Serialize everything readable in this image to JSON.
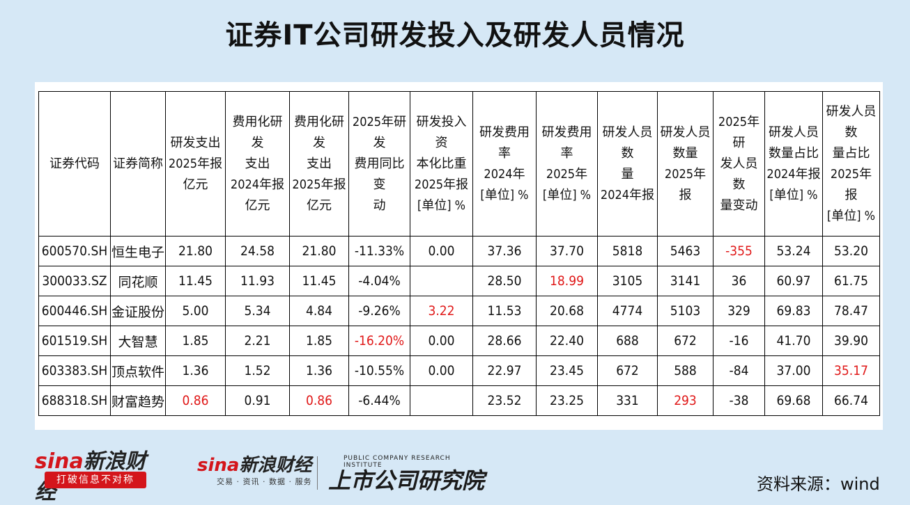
{
  "title": "证券IT公司研发投入及研发人员情况",
  "headers": [
    "证券代码",
    "证券简称",
    "研发支出\n2025年报\n亿元",
    "费用化研发\n支出\n2024年报\n亿元",
    "费用化研发\n支出\n2025年报\n亿元",
    "2025年研发\n费用同比变\n动",
    "研发投入资\n本化比重\n2025年报\n[单位] %",
    "研发费用率\n2024年\n[单位] %",
    "研发费用率\n2025年\n[单位] %",
    "研发人员数\n量\n2024年报",
    "研发人员\n数量\n2025年报",
    "2025年研\n发人员数\n量变动",
    "研发人员\n数量占比\n2024年报\n[单位] %",
    "研发人员数\n量占比\n2025年报\n[单位] %"
  ],
  "rows": [
    [
      "600570.SH",
      "恒生电子",
      "21.80",
      "24.58",
      "21.80",
      "-11.33%",
      "0.00",
      "37.36",
      "37.70",
      "5818",
      "5463",
      "-355",
      "53.24",
      "53.20"
    ],
    [
      "300033.SZ",
      "同花顺",
      "11.45",
      "11.93",
      "11.45",
      "-4.04%",
      "",
      "28.50",
      "18.99",
      "3105",
      "3141",
      "36",
      "60.97",
      "61.75"
    ],
    [
      "600446.SH",
      "金证股份",
      "5.00",
      "5.34",
      "4.84",
      "-9.26%",
      "3.22",
      "11.53",
      "20.68",
      "4774",
      "5103",
      "329",
      "69.83",
      "78.47"
    ],
    [
      "601519.SH",
      "大智慧",
      "1.85",
      "2.21",
      "1.85",
      "-16.20%",
      "0.00",
      "28.66",
      "22.40",
      "688",
      "672",
      "-16",
      "41.70",
      "39.90"
    ],
    [
      "603383.SH",
      "顶点软件",
      "1.36",
      "1.52",
      "1.36",
      "-10.55%",
      "0.00",
      "22.97",
      "23.45",
      "672",
      "588",
      "-84",
      "37.00",
      "35.17"
    ],
    [
      "688318.SH",
      "财富趋势",
      "0.86",
      "0.91",
      "0.86",
      "-6.44%",
      "",
      "23.52",
      "23.25",
      "331",
      "293",
      "-38",
      "69.68",
      "66.74"
    ]
  ],
  "highlight_color": "#e01818",
  "highlights": [
    [
      0,
      11
    ],
    [
      1,
      8
    ],
    [
      2,
      6
    ],
    [
      3,
      5
    ],
    [
      4,
      13
    ],
    [
      5,
      2
    ],
    [
      5,
      4
    ],
    [
      5,
      10
    ]
  ],
  "footer": {
    "logo1_brand_prefix": "sina",
    "logo1_brand_cn": "新浪财经",
    "logo1_slogan": "打破信息不对称",
    "logo2_brand_prefix": "sina",
    "logo2_brand_cn": "新浪财经",
    "logo2_sub": "交易 · 资讯 · 数据 · 服务",
    "institute_en": "PUBLIC COMPANY RESEARCH INSTITUTE",
    "institute_cn": "上市公司研究院",
    "source": "资料来源：wind"
  }
}
